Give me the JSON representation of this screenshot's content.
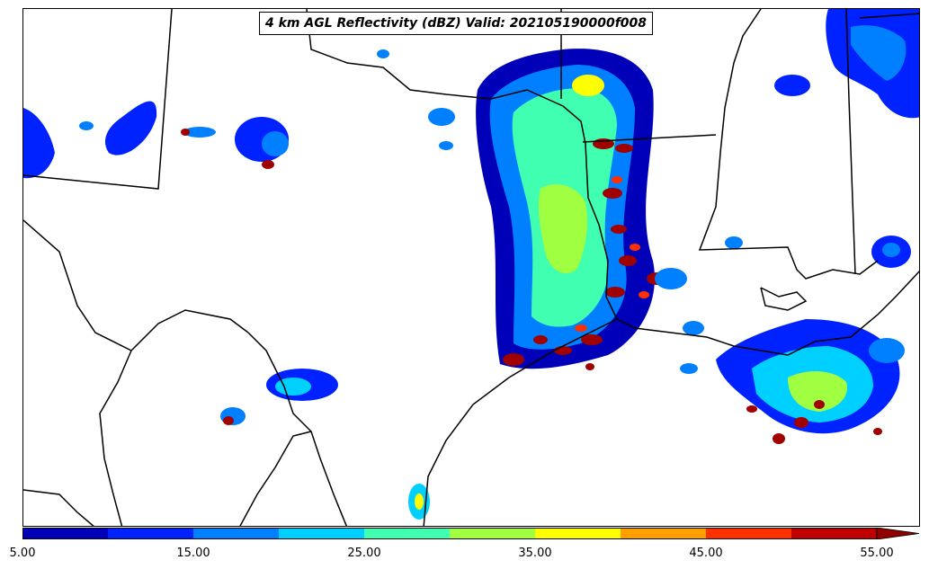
{
  "title": "4 km AGL Reflectivity (dBZ) Valid: 202105190000f008",
  "colorbar": {
    "tick_labels": [
      "5.00",
      "15.00",
      "25.00",
      "35.00",
      "45.00",
      "55.00"
    ],
    "tick_values": [
      5,
      15,
      25,
      35,
      45,
      55
    ],
    "range": [
      5,
      60
    ],
    "extend": "max",
    "colors": [
      "#0000b8",
      "#0022ff",
      "#0080ff",
      "#00d0ff",
      "#40ffb0",
      "#a0ff40",
      "#ffff00",
      "#ffa000",
      "#ff3000",
      "#c00000",
      "#900000"
    ]
  }
}
